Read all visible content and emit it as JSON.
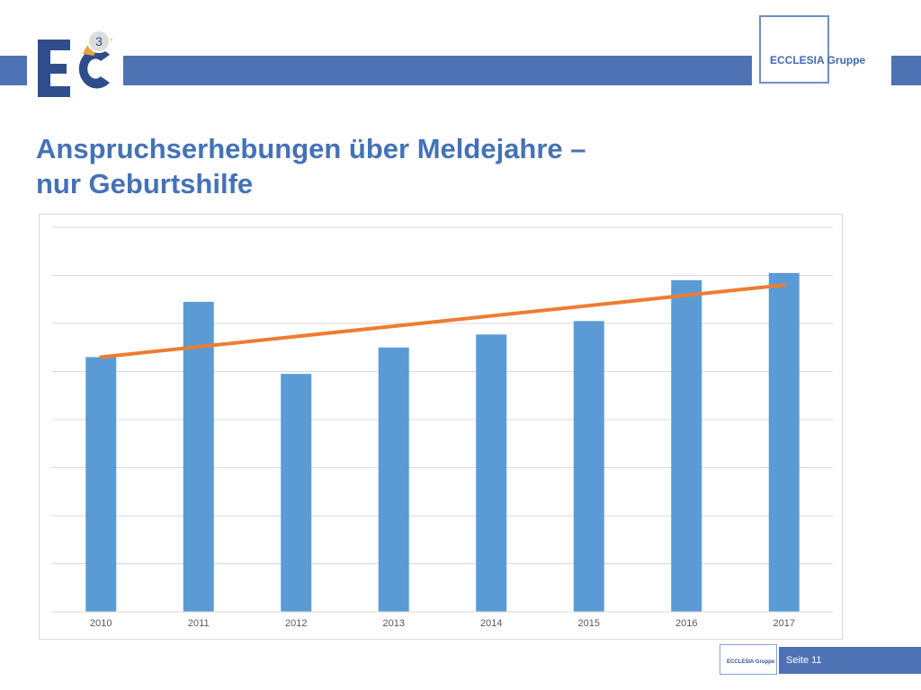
{
  "slide": {
    "title_lines": [
      "Anspruchserhebungen über Meldejahre –",
      "nur Geburtshilfe"
    ],
    "page_label": "Seite 11"
  },
  "header": {
    "logo_badge": "3",
    "brand": "ECCLESIA Gruppe"
  },
  "footer": {
    "brand": "ECCLESIA Gruppe"
  },
  "colors": {
    "band": "#4f72b5",
    "bar": "#5b9bd5",
    "trend": "#ed7d31",
    "title": "#4472b6",
    "grid": "#d9d9d9"
  },
  "chart_data": {
    "type": "bar",
    "categories": [
      "2010",
      "2011",
      "2012",
      "2013",
      "2014",
      "2015",
      "2016",
      "2017"
    ],
    "series": [
      {
        "values": [
          5.3,
          6.45,
          4.95,
          5.5,
          5.77,
          6.05,
          6.9,
          7.05
        ]
      }
    ],
    "trendline": {
      "type": "linear",
      "start": 5.3,
      "end": 6.8
    },
    "ylim": [
      0,
      8
    ],
    "grid": true,
    "legend": false,
    "ytick_labels": false
  }
}
